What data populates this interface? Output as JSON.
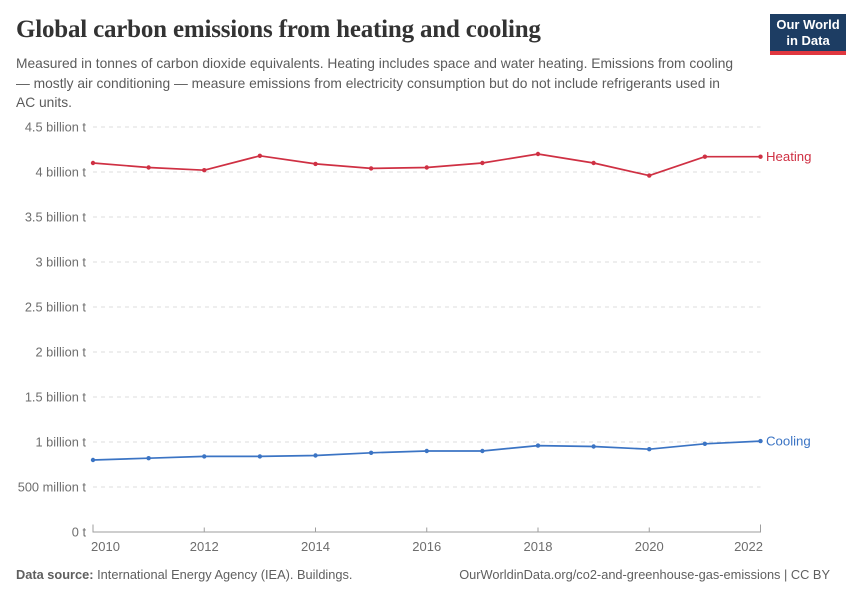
{
  "header": {
    "title": "Global carbon emissions from heating and cooling",
    "subtitle": "Measured in tonnes of carbon dioxide equivalents. Heating includes space and water heating. Emissions from cooling — mostly air conditioning — measure emissions from electricity consumption but do not include refrigerants used in AC units."
  },
  "logo": {
    "line1": "Our World",
    "line2": "in Data",
    "bg_color": "#1d3d63",
    "accent_color": "#e0373f"
  },
  "chart_data": {
    "type": "line",
    "title": "Global carbon emissions from heating and cooling",
    "x": [
      2010,
      2011,
      2012,
      2013,
      2014,
      2015,
      2016,
      2017,
      2018,
      2019,
      2020,
      2021,
      2022
    ],
    "series": [
      {
        "name": "Heating",
        "color": "#cf3043",
        "unit": "billion tonnes CO2eq",
        "values": [
          4.1,
          4.05,
          4.02,
          4.18,
          4.09,
          4.04,
          4.05,
          4.1,
          4.2,
          4.1,
          3.96,
          4.17,
          4.17
        ]
      },
      {
        "name": "Cooling",
        "color": "#3b74c4",
        "unit": "billion tonnes CO2eq",
        "values": [
          0.8,
          0.82,
          0.84,
          0.84,
          0.85,
          0.88,
          0.9,
          0.9,
          0.96,
          0.95,
          0.92,
          0.98,
          1.01
        ]
      }
    ],
    "ylim": [
      0,
      4.5
    ],
    "ytick_values": [
      0,
      0.5,
      1,
      1.5,
      2,
      2.5,
      3,
      3.5,
      4,
      4.5
    ],
    "ytick_labels": [
      "0 t",
      "500 million t",
      "1 billion t",
      "1.5 billion t",
      "2 billion t",
      "2.5 billion t",
      "3 billion t",
      "3.5 billion t",
      "4 billion t",
      "4.5 billion t"
    ],
    "xticks": [
      2010,
      2012,
      2014,
      2016,
      2018,
      2020,
      2022
    ],
    "grid": "horizontal-dashed",
    "legend_position": "labels-at-line-end"
  },
  "footer": {
    "source_label": "Data source:",
    "source_text": "International Energy Agency (IEA). Buildings.",
    "credit": "OurWorldinData.org/co2-and-greenhouse-gas-emissions | CC BY"
  }
}
